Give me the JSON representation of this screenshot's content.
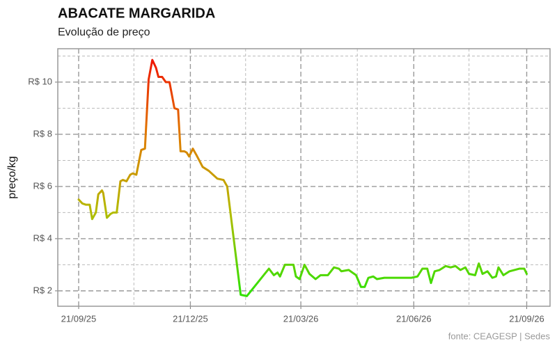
{
  "chart_data": {
    "type": "line",
    "title": "ABACATE MARGARIDA",
    "subtitle": "Evolução de preço",
    "y_label": "preço/kg",
    "source": "fonte: CEAGESP | Sedes",
    "xlim": [
      "2025-09-04",
      "2026-10-10"
    ],
    "xticks": [
      {
        "value": "2025-09-21",
        "label": "21/09/25"
      },
      {
        "value": "2025-12-21",
        "label": "21/12/25"
      },
      {
        "value": "2026-03-21",
        "label": "21/03/26"
      },
      {
        "value": "2026-06-21",
        "label": "21/06/26"
      },
      {
        "value": "2026-09-21",
        "label": "21/09/26"
      }
    ],
    "x_minor_ticks": [
      "2025-11-05",
      "2026-02-04",
      "2026-05-06",
      "2026-08-05"
    ],
    "ylim": [
      1.41,
      11.28
    ],
    "yticks": [
      {
        "value": 2,
        "label": "R$ 2"
      },
      {
        "value": 4,
        "label": "R$ 4"
      },
      {
        "value": 6,
        "label": "R$ 6"
      },
      {
        "value": 8,
        "label": "R$ 8"
      },
      {
        "value": 10,
        "label": "R$ 10"
      }
    ],
    "y_minor_ticks": [
      3,
      5,
      7,
      9,
      11
    ],
    "grid": true,
    "color_scale": [
      {
        "value": 2,
        "color": "#33e000"
      },
      {
        "value": 5,
        "color": "#b3bb00"
      },
      {
        "value": 8,
        "color": "#e07a00"
      },
      {
        "value": 11,
        "color": "#f01000"
      }
    ],
    "x": [
      "2025-09-21",
      "2025-09-24",
      "2025-09-27",
      "2025-09-30",
      "2025-10-02",
      "2025-10-05",
      "2025-10-07",
      "2025-10-10",
      "2025-10-11",
      "2025-10-14",
      "2025-10-17",
      "2025-10-19",
      "2025-10-22",
      "2025-10-25",
      "2025-10-27",
      "2025-10-30",
      "2025-11-02",
      "2025-11-04",
      "2025-11-07",
      "2025-11-11",
      "2025-11-14",
      "2025-11-17",
      "2025-11-20",
      "2025-11-23",
      "2025-11-25",
      "2025-11-28",
      "2025-12-01",
      "2025-12-04",
      "2025-12-08",
      "2025-12-11",
      "2025-12-13",
      "2025-12-16",
      "2025-12-18",
      "2025-12-20",
      "2025-12-23",
      "2025-12-26",
      "2025-12-31",
      "2026-01-05",
      "2026-01-12",
      "2026-01-17",
      "2026-01-20",
      "2026-01-31",
      "2026-02-05",
      "2026-02-23",
      "2026-02-27",
      "2026-03-02",
      "2026-03-04",
      "2026-03-08",
      "2026-03-15",
      "2026-03-17",
      "2026-03-20",
      "2026-03-24",
      "2026-03-28",
      "2026-04-02",
      "2026-04-06",
      "2026-04-12",
      "2026-04-17",
      "2026-04-21",
      "2026-04-23",
      "2026-04-29",
      "2026-05-05",
      "2026-05-09",
      "2026-05-12",
      "2026-05-15",
      "2026-05-19",
      "2026-05-22",
      "2026-05-28",
      "2026-06-05",
      "2026-06-14",
      "2026-06-19",
      "2026-06-24",
      "2026-06-28",
      "2026-07-02",
      "2026-07-05",
      "2026-07-08",
      "2026-07-12",
      "2026-07-17",
      "2026-07-21",
      "2026-07-25",
      "2026-07-29",
      "2026-08-02",
      "2026-08-05",
      "2026-08-10",
      "2026-08-13",
      "2026-08-16",
      "2026-08-20",
      "2026-08-24",
      "2026-08-27",
      "2026-08-29",
      "2026-09-02",
      "2026-09-07",
      "2026-09-11",
      "2026-09-15",
      "2026-09-19",
      "2026-09-21"
    ],
    "values": [
      5.5,
      5.35,
      5.3,
      5.3,
      4.75,
      5.0,
      5.7,
      5.85,
      5.75,
      4.8,
      4.95,
      5.0,
      5.0,
      6.2,
      6.25,
      6.2,
      6.45,
      6.5,
      6.45,
      7.4,
      7.45,
      10.1,
      10.85,
      10.55,
      10.2,
      10.2,
      10.0,
      10.0,
      9.0,
      8.95,
      7.35,
      7.35,
      7.3,
      7.15,
      7.45,
      7.2,
      6.75,
      6.6,
      6.3,
      6.25,
      6.0,
      1.85,
      1.8,
      2.85,
      2.6,
      2.7,
      2.55,
      3.0,
      3.0,
      2.55,
      2.45,
      3.0,
      2.65,
      2.45,
      2.6,
      2.6,
      2.9,
      2.85,
      2.75,
      2.8,
      2.6,
      2.15,
      2.15,
      2.5,
      2.55,
      2.45,
      2.5,
      2.5,
      2.5,
      2.5,
      2.55,
      2.85,
      2.85,
      2.3,
      2.75,
      2.8,
      2.95,
      2.9,
      2.95,
      2.8,
      2.9,
      2.65,
      2.6,
      3.05,
      2.65,
      2.75,
      2.5,
      2.55,
      2.9,
      2.6,
      2.75,
      2.8,
      2.85,
      2.85,
      2.65
    ]
  }
}
